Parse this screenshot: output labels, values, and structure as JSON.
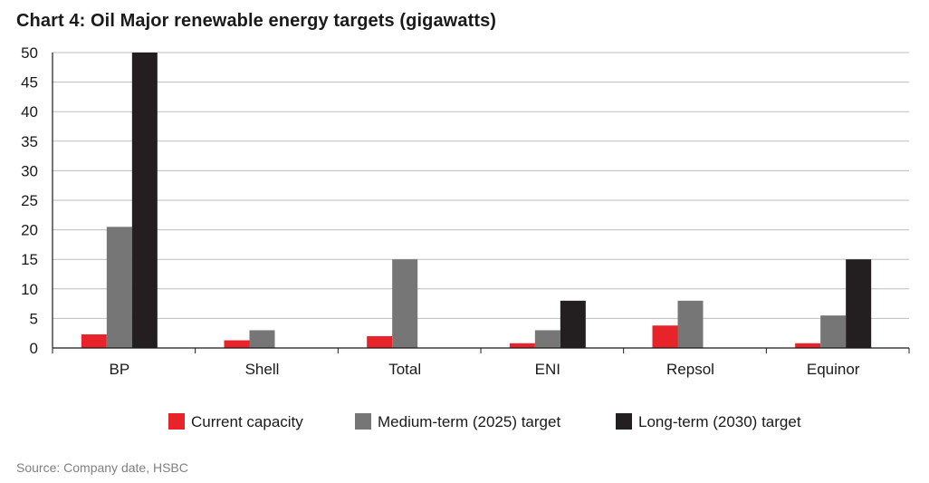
{
  "title": "Chart 4: Oil Major renewable energy targets (gigawatts)",
  "source": "Source: Company date, HSBC",
  "colors": {
    "current": "#e8232a",
    "medium": "#767676",
    "long": "#231f20",
    "grid": "#bdbdbd",
    "axis": "#1a1a1a"
  },
  "chart_data": {
    "type": "bar",
    "categories": [
      "BP",
      "Shell",
      "Total",
      "ENI",
      "Repsol",
      "Equinor"
    ],
    "series": [
      {
        "name": "Current capacity",
        "values": [
          2.3,
          1.3,
          2.0,
          0.8,
          3.8,
          0.8
        ]
      },
      {
        "name": "Medium-term (2025) target",
        "values": [
          20.5,
          3.0,
          15.0,
          3.0,
          8.0,
          5.5
        ]
      },
      {
        "name": "Long-term (2030) target",
        "values": [
          50,
          0,
          0,
          8.0,
          0,
          15.0
        ]
      }
    ],
    "yticks": [
      "0",
      "5",
      "10",
      "15",
      "20",
      "25",
      "30",
      "35",
      "40",
      "45",
      "50"
    ],
    "ylim": [
      0,
      50
    ],
    "xlabel": "",
    "ylabel": "",
    "grid": true,
    "legend_position": "bottom"
  }
}
